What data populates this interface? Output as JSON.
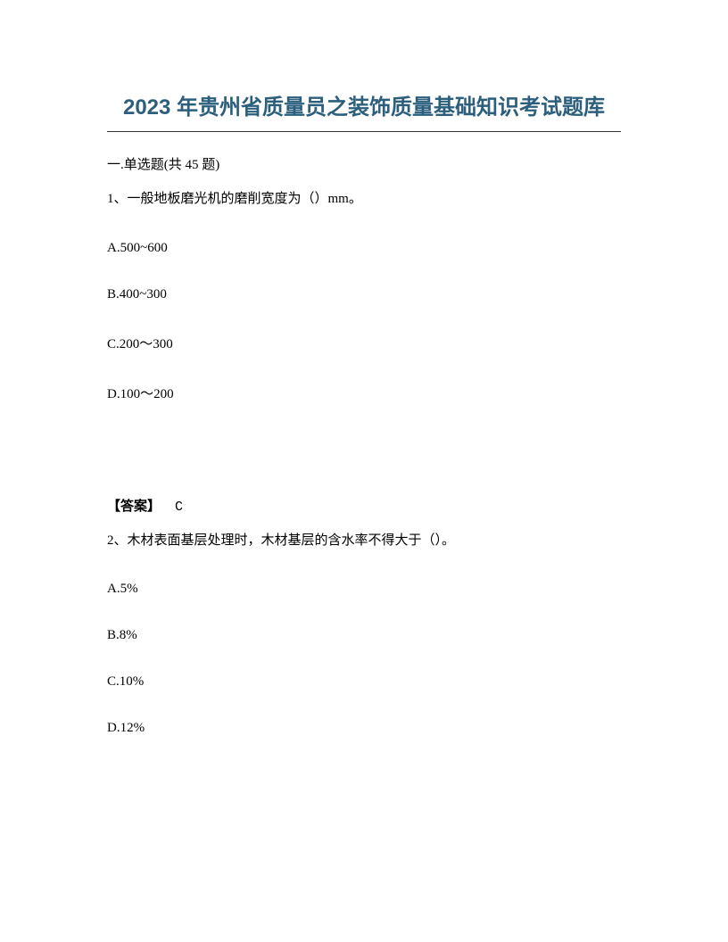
{
  "title": "2023 年贵州省质量员之装饰质量基础知识考试题库",
  "section_header": "一.单选题(共 45 题)",
  "questions": [
    {
      "number": "1",
      "text": "一般地板磨光机的磨削宽度为（）mm。",
      "options": {
        "A": "A.500~600",
        "B": "B.400~300",
        "C": "C.200～300",
        "D": "D.100～200"
      },
      "answer_label": "【答案】",
      "answer_value": "C"
    },
    {
      "number": "2",
      "text": "木材表面基层处理时，木材基层的含水率不得大于（）。",
      "options": {
        "A": "A.5%",
        "B": "B.8%",
        "C": "C.10%",
        "D": "D.12%"
      }
    }
  ]
}
